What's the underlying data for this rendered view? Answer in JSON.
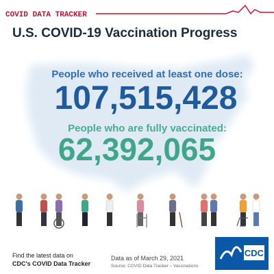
{
  "header": {
    "label": "COVID DATA TRACKER",
    "title": "U.S. COVID-19 Vaccination Progress"
  },
  "stats": [
    {
      "label": "People who received at least one dose:",
      "value": "107,515,428"
    },
    {
      "label": "People who are fully vaccinated:",
      "value": "62,392,065"
    }
  ],
  "footer": {
    "line1": "Find the latest data on",
    "line2": "CDC's COVID Data Tracker",
    "date": "Data as of March 29, 2021",
    "source": "Source: COVID Data Tracker – Vaccinations",
    "logo": "CDC"
  }
}
